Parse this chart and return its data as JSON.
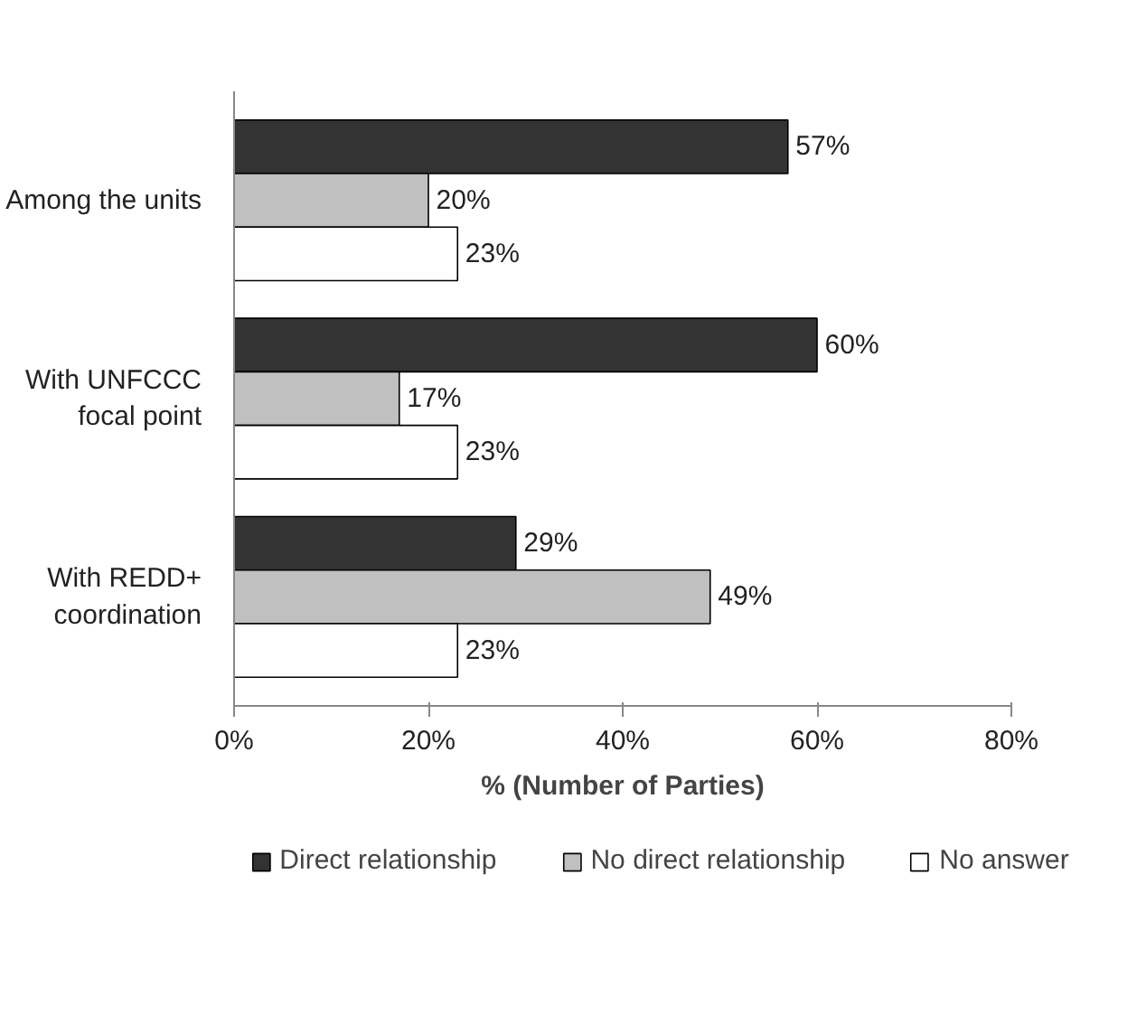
{
  "chart_data": {
    "type": "bar",
    "orientation": "horizontal",
    "xlabel": "% (Number of Parties)",
    "categories": [
      "Among the units",
      "With UNFCCC focal point",
      "With REDD+ coordination"
    ],
    "series": [
      {
        "name": "Direct relationship",
        "color": "#333333",
        "values": [
          57,
          60,
          29
        ],
        "value_labels": [
          "57%",
          "60%",
          "29%"
        ]
      },
      {
        "name": "No direct relationship",
        "color": "#c0c0c0",
        "values": [
          20,
          17,
          49
        ],
        "value_labels": [
          "20%",
          "17%",
          "49%"
        ]
      },
      {
        "name": "No answer",
        "color": "#ffffff",
        "values": [
          23,
          23,
          23
        ],
        "value_labels": [
          "23%",
          "23%",
          "23%"
        ]
      }
    ],
    "xlim": [
      0,
      80
    ],
    "xticks": [
      {
        "value": 0,
        "label": "0%"
      },
      {
        "value": 20,
        "label": "20%"
      },
      {
        "value": 40,
        "label": "40%"
      },
      {
        "value": 60,
        "label": "60%"
      },
      {
        "value": 80,
        "label": "80%"
      }
    ],
    "grid": false,
    "legend": "bottom"
  }
}
